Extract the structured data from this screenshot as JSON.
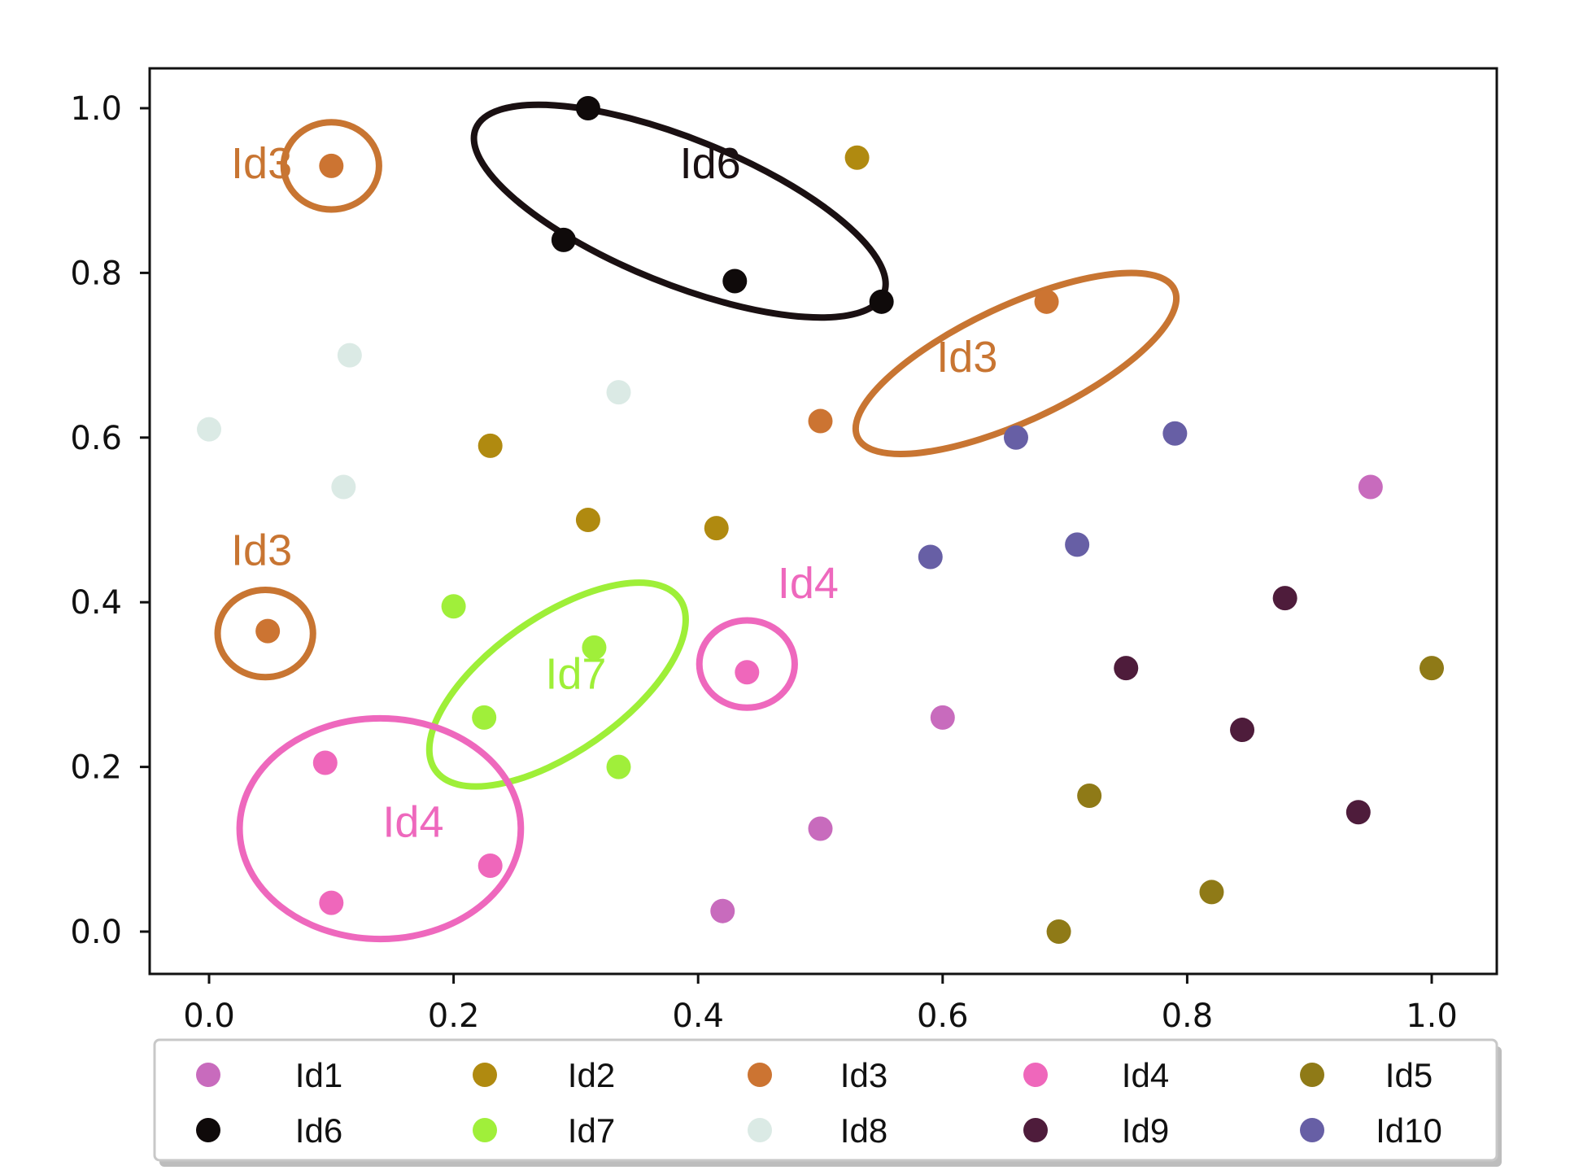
{
  "chart_data": {
    "type": "scatter",
    "title": "",
    "xlabel": "",
    "ylabel": "",
    "xlim": [
      -0.05,
      1.05
    ],
    "ylim": [
      -0.05,
      1.05
    ],
    "grid": false,
    "x_ticks": [
      "0.0",
      "0.2",
      "0.4",
      "0.6",
      "0.8",
      "1.0"
    ],
    "y_ticks": [
      "0.0",
      "0.2",
      "0.4",
      "0.6",
      "0.8",
      "1.0"
    ],
    "legend_position": "bottom",
    "series": [
      {
        "name": "Id1",
        "color": "#c86bbd",
        "points": [
          [
            0.95,
            0.54
          ],
          [
            0.6,
            0.26
          ],
          [
            0.5,
            0.125
          ],
          [
            0.42,
            0.025
          ]
        ]
      },
      {
        "name": "Id2",
        "color": "#b08a10",
        "points": [
          [
            0.53,
            0.94
          ],
          [
            0.23,
            0.59
          ],
          [
            0.31,
            0.5
          ],
          [
            0.415,
            0.49
          ]
        ]
      },
      {
        "name": "Id3",
        "color": "#cc7432",
        "points": [
          [
            0.1,
            0.93
          ],
          [
            0.685,
            0.765
          ],
          [
            0.5,
            0.62
          ],
          [
            0.048,
            0.365
          ]
        ]
      },
      {
        "name": "Id4",
        "color": "#ef67bb",
        "points": [
          [
            0.44,
            0.315
          ],
          [
            0.095,
            0.205
          ],
          [
            0.23,
            0.08
          ],
          [
            0.1,
            0.035
          ]
        ]
      },
      {
        "name": "Id5",
        "color": "#8f7a17",
        "points": [
          [
            1.0,
            0.32
          ],
          [
            0.72,
            0.165
          ],
          [
            0.82,
            0.048
          ],
          [
            0.695,
            0.0
          ]
        ]
      },
      {
        "name": "Id6",
        "color": "#0f0a0a",
        "points": [
          [
            0.31,
            1.0
          ],
          [
            0.29,
            0.84
          ],
          [
            0.43,
            0.79
          ],
          [
            0.55,
            0.765
          ]
        ]
      },
      {
        "name": "Id7",
        "color": "#a0ef3a",
        "points": [
          [
            0.2,
            0.395
          ],
          [
            0.315,
            0.345
          ],
          [
            0.225,
            0.26
          ],
          [
            0.335,
            0.2
          ]
        ]
      },
      {
        "name": "Id8",
        "color": "#dbeae5",
        "points": [
          [
            0.115,
            0.7
          ],
          [
            0.335,
            0.655
          ],
          [
            0.0,
            0.61
          ],
          [
            0.11,
            0.54
          ]
        ]
      },
      {
        "name": "Id9",
        "color": "#4e1c3b",
        "points": [
          [
            0.88,
            0.405
          ],
          [
            0.75,
            0.32
          ],
          [
            0.845,
            0.245
          ],
          [
            0.94,
            0.145
          ]
        ]
      },
      {
        "name": "Id10",
        "color": "#675fa5",
        "points": [
          [
            0.79,
            0.605
          ],
          [
            0.66,
            0.6
          ],
          [
            0.59,
            0.455
          ],
          [
            0.71,
            0.47
          ]
        ]
      }
    ],
    "annotations": [
      {
        "label": "Id6",
        "color": "#1a1012",
        "center": [
          0.385,
          0.875
        ],
        "radii": [
          0.18,
          0.088
        ],
        "angle": 22,
        "text_at": [
          0.385,
          0.915
        ]
      },
      {
        "label": "Id3",
        "color": "#c87532",
        "center": [
          0.1,
          0.93
        ],
        "radii": [
          0.039,
          0.053
        ],
        "angle": 0,
        "text_at": [
          0.018,
          0.915
        ]
      },
      {
        "label": "Id3",
        "color": "#c87532",
        "center": [
          0.66,
          0.69
        ],
        "radii": [
          0.143,
          0.07
        ],
        "angle": -25,
        "text_at": [
          0.595,
          0.68
        ]
      },
      {
        "label": "Id3",
        "color": "#c87532",
        "center": [
          0.046,
          0.362
        ],
        "radii": [
          0.039,
          0.053
        ],
        "angle": 0,
        "text_at": [
          0.018,
          0.445
        ]
      },
      {
        "label": "Id4",
        "color": "#ee68bd",
        "center": [
          0.44,
          0.325
        ],
        "radii": [
          0.039,
          0.053
        ],
        "angle": 0,
        "text_at": [
          0.465,
          0.405
        ]
      },
      {
        "label": "Id7",
        "color": "#9eef38",
        "center": [
          0.285,
          0.3
        ],
        "radii": [
          0.122,
          0.082
        ],
        "angle": -35,
        "text_at": [
          0.275,
          0.295
        ]
      },
      {
        "label": "Id4",
        "color": "#ee68bd",
        "center": [
          0.14,
          0.125
        ],
        "radii": [
          0.115,
          0.134
        ],
        "angle": 0,
        "text_at": [
          0.142,
          0.115
        ]
      }
    ]
  }
}
